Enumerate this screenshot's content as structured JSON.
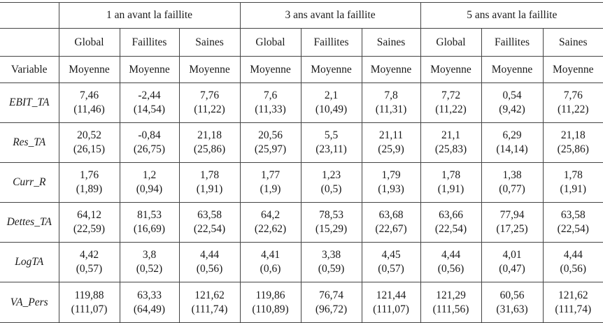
{
  "table": {
    "periods": [
      "1 an avant la faillite",
      "3 ans avant la faillite",
      "5 ans avant la faillite"
    ],
    "groups": [
      "Global",
      "Faillites",
      "Saines"
    ],
    "variable_header": "Variable",
    "stat_label": "Moyenne",
    "rows": [
      {
        "name": "EBIT_TA",
        "cells": [
          {
            "mean": "7,46",
            "sd": "(11,46)"
          },
          {
            "mean": "-2,44",
            "sd": "(14,54)"
          },
          {
            "mean": "7,76",
            "sd": "(11,22)"
          },
          {
            "mean": "7,6",
            "sd": "(11,33)"
          },
          {
            "mean": "2,1",
            "sd": "(10,49)"
          },
          {
            "mean": "7,8",
            "sd": "(11,31)"
          },
          {
            "mean": "7,72",
            "sd": "(11,22)"
          },
          {
            "mean": "0,54",
            "sd": "(9,42)"
          },
          {
            "mean": "7,76",
            "sd": "(11,22)"
          }
        ]
      },
      {
        "name": "Res_TA",
        "cells": [
          {
            "mean": "20,52",
            "sd": "(26,15)"
          },
          {
            "mean": "-0,84",
            "sd": "(26,75)"
          },
          {
            "mean": "21,18",
            "sd": "(25,86)"
          },
          {
            "mean": "20,56",
            "sd": "(25,97)"
          },
          {
            "mean": "5,5",
            "sd": "(23,11)"
          },
          {
            "mean": "21,11",
            "sd": "(25,9)"
          },
          {
            "mean": "21,1",
            "sd": "(25,83)"
          },
          {
            "mean": "6,29",
            "sd": "(14,14)"
          },
          {
            "mean": "21,18",
            "sd": "(25,86)"
          }
        ]
      },
      {
        "name": "Curr_R",
        "cells": [
          {
            "mean": "1,76",
            "sd": "(1,89)"
          },
          {
            "mean": "1,2",
            "sd": "(0,94)"
          },
          {
            "mean": "1,78",
            "sd": "(1,91)"
          },
          {
            "mean": "1,77",
            "sd": "(1,9)"
          },
          {
            "mean": "1,23",
            "sd": "(0,5)"
          },
          {
            "mean": "1,79",
            "sd": "(1,93)"
          },
          {
            "mean": "1,78",
            "sd": "(1,91)"
          },
          {
            "mean": "1,38",
            "sd": "(0,77)"
          },
          {
            "mean": "1,78",
            "sd": "(1,91)"
          }
        ]
      },
      {
        "name": "Dettes_TA",
        "cells": [
          {
            "mean": "64,12",
            "sd": "(22,59)"
          },
          {
            "mean": "81,53",
            "sd": "(16,69)"
          },
          {
            "mean": "63,58",
            "sd": "(22,54)"
          },
          {
            "mean": "64,2",
            "sd": "(22,62)"
          },
          {
            "mean": "78,53",
            "sd": "(15,29)"
          },
          {
            "mean": "63,68",
            "sd": "(22,67)"
          },
          {
            "mean": "63,66",
            "sd": "(22,54)"
          },
          {
            "mean": "77,94",
            "sd": "(17,25)"
          },
          {
            "mean": "63,58",
            "sd": "(22,54)"
          }
        ]
      },
      {
        "name": "LogTA",
        "cells": [
          {
            "mean": "4,42",
            "sd": "(0,57)"
          },
          {
            "mean": "3,8",
            "sd": "(0,52)"
          },
          {
            "mean": "4,44",
            "sd": "(0,56)"
          },
          {
            "mean": "4,41",
            "sd": "(0,6)"
          },
          {
            "mean": "3,38",
            "sd": "(0,59)"
          },
          {
            "mean": "4,45",
            "sd": "(0,57)"
          },
          {
            "mean": "4,44",
            "sd": "(0,56)"
          },
          {
            "mean": "4,01",
            "sd": "(0,47)"
          },
          {
            "mean": "4,44",
            "sd": "(0,56)"
          }
        ]
      },
      {
        "name": "VA_Pers",
        "cells": [
          {
            "mean": "119,88",
            "sd": "(111,07)"
          },
          {
            "mean": "63,33",
            "sd": "(64,49)"
          },
          {
            "mean": "121,62",
            "sd": "(111,74)"
          },
          {
            "mean": "119,86",
            "sd": "(110,89)"
          },
          {
            "mean": "76,74",
            "sd": "(96,72)"
          },
          {
            "mean": "121,44",
            "sd": "(111,07)"
          },
          {
            "mean": "121,29",
            "sd": "(111,56)"
          },
          {
            "mean": "60,56",
            "sd": "(31,63)"
          },
          {
            "mean": "121,62",
            "sd": "(111,74)"
          }
        ]
      }
    ]
  }
}
